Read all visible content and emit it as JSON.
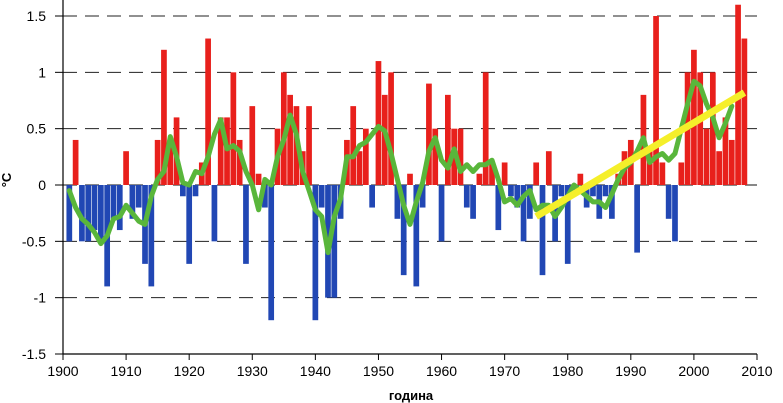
{
  "chart_data": {
    "type": "bar",
    "xlabel": "година",
    "ylabel": "°C",
    "xlim": [
      1900,
      2010
    ],
    "ylim": [
      -1.5,
      1.5
    ],
    "x_ticks": [
      "1900",
      "1910",
      "1920",
      "1930",
      "1940",
      "1950",
      "1960",
      "1970",
      "1980",
      "1990",
      "2000",
      "2010"
    ],
    "y_ticks": [
      "1.5",
      "1",
      "0.5",
      "0",
      "-0.5",
      "-1",
      "-1.5"
    ],
    "grid": "horizontal dashed",
    "colors": {
      "positive": "#e8201c",
      "negative": "#2147b4",
      "smooth": "#59b63b",
      "trend": "#f5ef2a"
    },
    "series": [
      {
        "kind": "bars",
        "x": [
          1901,
          1902,
          1903,
          1904,
          1905,
          1906,
          1907,
          1908,
          1909,
          1910,
          1911,
          1912,
          1913,
          1914,
          1915,
          1916,
          1917,
          1918,
          1919,
          1920,
          1921,
          1922,
          1923,
          1924,
          1925,
          1926,
          1927,
          1928,
          1929,
          1930,
          1931,
          1932,
          1933,
          1934,
          1935,
          1936,
          1937,
          1938,
          1939,
          1940,
          1941,
          1942,
          1943,
          1944,
          1945,
          1946,
          1947,
          1948,
          1949,
          1950,
          1951,
          1952,
          1953,
          1954,
          1955,
          1956,
          1957,
          1958,
          1959,
          1960,
          1961,
          1962,
          1963,
          1964,
          1965,
          1966,
          1967,
          1968,
          1969,
          1970,
          1971,
          1972,
          1973,
          1974,
          1975,
          1976,
          1977,
          1978,
          1979,
          1980,
          1981,
          1982,
          1983,
          1984,
          1985,
          1986,
          1987,
          1988,
          1989,
          1990,
          1991,
          1992,
          1993,
          1994,
          1995,
          1996,
          1997,
          1998,
          1999,
          2000,
          2001,
          2002,
          2003,
          2004,
          2005,
          2006,
          2007,
          2008
        ],
        "values": [
          -0.5,
          0.4,
          -0.5,
          -0.5,
          -0.4,
          -0.5,
          -0.9,
          -0.3,
          -0.4,
          0.3,
          -0.3,
          -0.2,
          -0.7,
          -0.9,
          0.4,
          1.2,
          0.4,
          0.6,
          -0.1,
          -0.7,
          -0.1,
          0.2,
          1.3,
          -0.5,
          0.6,
          0.6,
          1.0,
          0.4,
          -0.7,
          0.7,
          0.1,
          -0.2,
          -1.2,
          0.5,
          1.0,
          0.8,
          0.7,
          0.3,
          0.7,
          -1.2,
          -0.2,
          -1.0,
          -1.0,
          -0.3,
          0.4,
          0.7,
          0.3,
          0.5,
          -0.2,
          1.1,
          0.8,
          1.0,
          -0.3,
          -0.8,
          0.1,
          -0.9,
          -0.2,
          0.9,
          0.5,
          -0.5,
          0.8,
          0.5,
          0.5,
          -0.2,
          -0.3,
          0.1,
          1.0,
          0.2,
          -0.4,
          0.2,
          -0.1,
          -0.2,
          -0.5,
          -0.3,
          0.2,
          -0.8,
          0.3,
          -0.5,
          -0.1,
          -0.7,
          -0.1,
          0.1,
          -0.2,
          -0.1,
          -0.3,
          -0.1,
          -0.3,
          0.1,
          0.3,
          0.4,
          -0.6,
          0.8,
          0.3,
          1.5,
          0.2,
          -0.3,
          -0.5,
          0.2,
          1.0,
          1.2,
          1.0,
          0.5,
          1.0,
          0.3,
          0.6,
          0.4,
          1.6,
          1.3
        ]
      },
      {
        "kind": "line",
        "x": [
          1901,
          1902,
          1903,
          1904,
          1905,
          1906,
          1907,
          1908,
          1909,
          1910,
          1911,
          1912,
          1913,
          1914,
          1915,
          1916,
          1917,
          1918,
          1919,
          1920,
          1921,
          1922,
          1923,
          1924,
          1925,
          1926,
          1927,
          1928,
          1929,
          1930,
          1931,
          1932,
          1933,
          1934,
          1935,
          1936,
          1937,
          1938,
          1939,
          1940,
          1941,
          1942,
          1943,
          1944,
          1945,
          1946,
          1947,
          1948,
          1949,
          1950,
          1951,
          1952,
          1953,
          1954,
          1955,
          1956,
          1957,
          1958,
          1959,
          1960,
          1961,
          1962,
          1963,
          1964,
          1965,
          1966,
          1967,
          1968,
          1969,
          1970,
          1971,
          1972,
          1973,
          1974,
          1975,
          1976,
          1977,
          1978,
          1979,
          1980,
          1981,
          1982,
          1983,
          1984,
          1985,
          1986,
          1987,
          1988,
          1989,
          1990,
          1991,
          1992,
          1993,
          1994,
          1995,
          1996,
          1997,
          1998,
          1999,
          2000,
          2001,
          2002,
          2003,
          2004,
          2005,
          2006
        ],
        "values": [
          -0.05,
          -0.2,
          -0.3,
          -0.35,
          -0.42,
          -0.52,
          -0.45,
          -0.3,
          -0.28,
          -0.18,
          -0.25,
          -0.32,
          -0.35,
          -0.1,
          0.05,
          0.12,
          0.43,
          0.25,
          0.02,
          0.0,
          0.12,
          0.1,
          0.25,
          0.45,
          0.58,
          0.32,
          0.35,
          0.3,
          0.12,
          0.0,
          -0.22,
          0.05,
          0.0,
          0.25,
          0.4,
          0.62,
          0.45,
          0.12,
          -0.05,
          -0.22,
          -0.28,
          -0.6,
          -0.28,
          -0.12,
          0.25,
          0.25,
          0.35,
          0.38,
          0.45,
          0.52,
          0.48,
          0.28,
          0.05,
          -0.18,
          -0.35,
          -0.15,
          0.02,
          0.3,
          0.42,
          0.22,
          0.15,
          0.32,
          0.12,
          0.18,
          0.12,
          0.18,
          0.18,
          0.22,
          0.05,
          -0.15,
          -0.12,
          -0.18,
          -0.1,
          -0.05,
          -0.22,
          -0.18,
          -0.18,
          -0.28,
          -0.2,
          -0.1,
          0.0,
          -0.05,
          -0.1,
          -0.15,
          -0.15,
          -0.2,
          -0.08,
          0.05,
          0.15,
          0.2,
          0.3,
          0.42,
          0.2,
          0.25,
          0.28,
          0.22,
          0.28,
          0.5,
          0.72,
          0.92,
          0.88,
          0.72,
          0.6,
          0.42,
          0.55,
          0.7
        ]
      },
      {
        "kind": "trend",
        "x": [
          1975,
          2008
        ],
        "values": [
          -0.28,
          0.82
        ]
      }
    ]
  }
}
